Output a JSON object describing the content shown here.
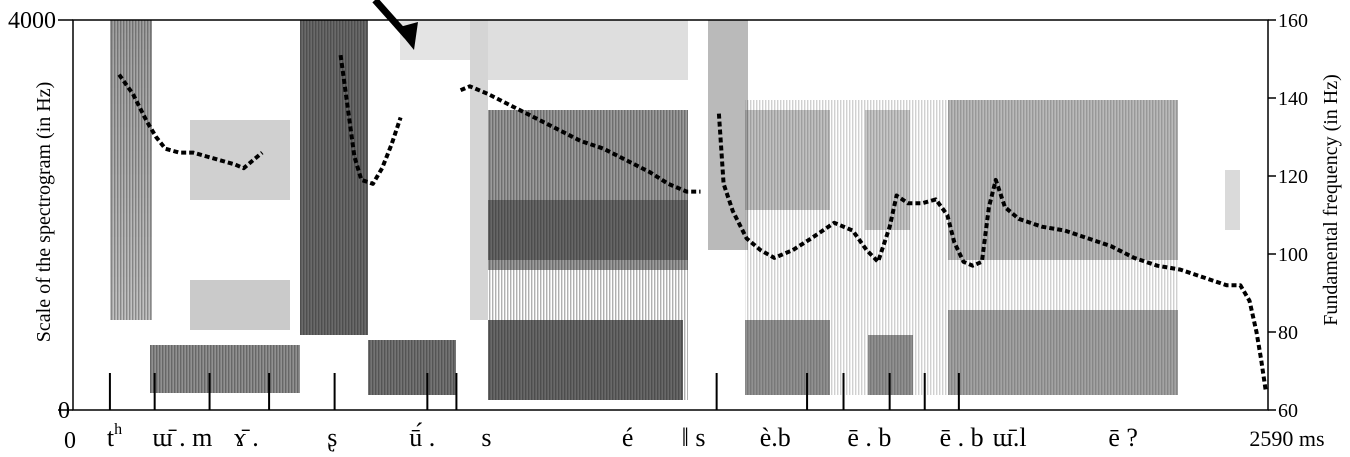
{
  "chart_data": {
    "type": "line",
    "title": "",
    "xlabel": "",
    "x_tick_labels": [
      "0",
      "2590 ms"
    ],
    "xlim": [
      0,
      2590
    ],
    "left_axis": {
      "label": "Scale of the spectrogram (in Hz)",
      "ticks": [
        "0",
        "4000"
      ],
      "ylim": [
        0,
        4000
      ]
    },
    "right_axis": {
      "label": "Fundamental frequency (in Hz)",
      "ticks": [
        "60",
        "80",
        "100",
        "120",
        "140",
        "160"
      ],
      "ylim": [
        60,
        160
      ]
    },
    "segment_labels": [
      {
        "text": "t",
        "sup": "h",
        "x": 90
      },
      {
        "text": "ɯ̄ . m",
        "x": 237
      },
      {
        "text": "ɤ̄ .",
        "x": 376
      },
      {
        "text": "ʂ",
        "x": 562
      },
      {
        "text": "ū́ .",
        "x": 757
      },
      {
        "text": "s",
        "x": 896
      },
      {
        "text": "é",
        "x": 1202
      },
      {
        "text": "‖ s",
        "x": 1345
      },
      {
        "text": "è.b",
        "x": 1522
      },
      {
        "text": "ē . b",
        "x": 1726
      },
      {
        "text": "ē . b",
        "x": 1926
      },
      {
        "text": "ɯ̄.l",
        "x": 2030
      },
      {
        "text": "ē ?",
        "x": 2276
      }
    ],
    "segment_boundaries_ms": [
      80,
      177,
      296,
      425,
      567,
      768,
      831,
      1395,
      1591,
      1670,
      1770,
      1846,
      1920
    ],
    "series": [
      {
        "points": [
          [
            100,
            146
          ],
          [
            130,
            141
          ],
          [
            160,
            134
          ],
          [
            180,
            130
          ],
          [
            200,
            127
          ],
          [
            230,
            126
          ],
          [
            260,
            126
          ],
          [
            290,
            125
          ],
          [
            320,
            124
          ],
          [
            350,
            123
          ],
          [
            370,
            122
          ],
          [
            390,
            124
          ],
          [
            410,
            126
          ]
        ]
      },
      {
        "points": [
          [
            580,
            151
          ],
          [
            595,
            138
          ],
          [
            610,
            125
          ],
          [
            625,
            119
          ],
          [
            650,
            118
          ],
          [
            670,
            122
          ],
          [
            690,
            128
          ],
          [
            710,
            135
          ]
        ]
      },
      {
        "points": [
          [
            840,
            142
          ],
          [
            860,
            143
          ],
          [
            900,
            141
          ],
          [
            950,
            138
          ],
          [
            1000,
            135
          ],
          [
            1050,
            132
          ],
          [
            1100,
            129
          ],
          [
            1150,
            127
          ],
          [
            1200,
            124
          ],
          [
            1250,
            121
          ],
          [
            1290,
            118
          ],
          [
            1330,
            116
          ],
          [
            1360,
            116
          ]
        ]
      },
      {
        "points": [
          [
            1400,
            136
          ],
          [
            1410,
            118
          ],
          [
            1430,
            111
          ],
          [
            1460,
            104
          ],
          [
            1490,
            101
          ],
          [
            1520,
            99
          ],
          [
            1560,
            101
          ],
          [
            1600,
            104
          ],
          [
            1650,
            108
          ],
          [
            1690,
            106
          ],
          [
            1720,
            101
          ],
          [
            1745,
            98
          ],
          [
            1770,
            107
          ],
          [
            1785,
            115
          ],
          [
            1810,
            113
          ],
          [
            1840,
            113
          ],
          [
            1870,
            114
          ],
          [
            1895,
            110
          ],
          [
            1910,
            103
          ],
          [
            1930,
            98
          ],
          [
            1950,
            97
          ],
          [
            1970,
            98
          ],
          [
            1985,
            112
          ],
          [
            2000,
            119
          ],
          [
            2020,
            112
          ],
          [
            2050,
            109
          ],
          [
            2100,
            107
          ],
          [
            2150,
            106
          ],
          [
            2200,
            104
          ],
          [
            2250,
            102
          ],
          [
            2300,
            99
          ],
          [
            2350,
            97
          ],
          [
            2400,
            96
          ],
          [
            2450,
            94
          ],
          [
            2500,
            92
          ],
          [
            2530,
            92
          ],
          [
            2550,
            88
          ],
          [
            2565,
            80
          ],
          [
            2575,
            73
          ],
          [
            2585,
            65
          ]
        ]
      }
    ]
  }
}
